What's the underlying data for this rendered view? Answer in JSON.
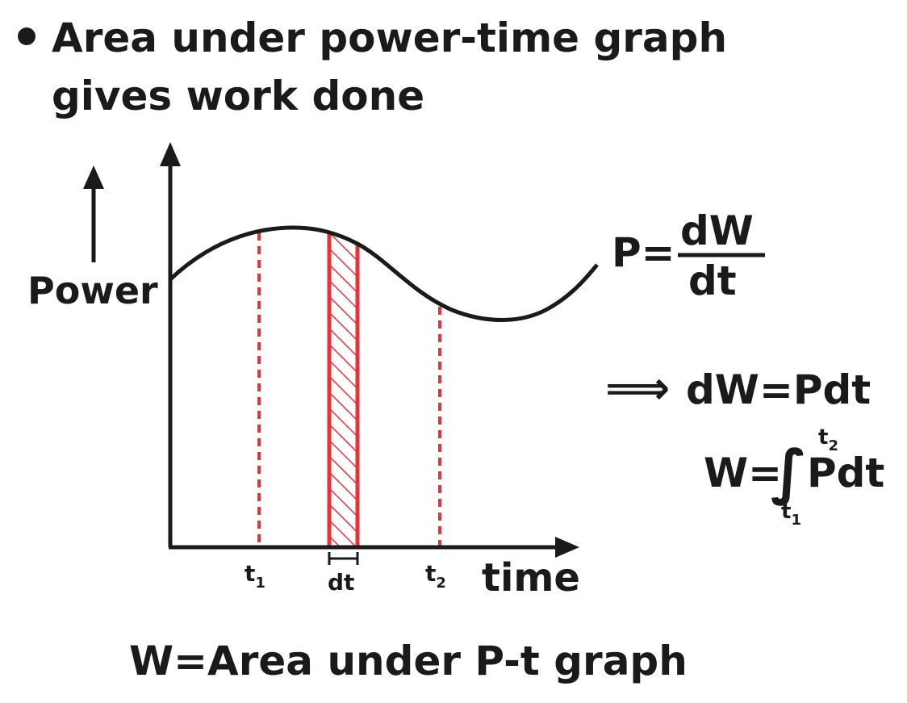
{
  "heading": {
    "line1": "Area under power-time graph",
    "line2": "gives work done"
  },
  "graph": {
    "y_label": "Power",
    "x_label": "time",
    "tick_t1_base": "t",
    "tick_t1_sub": "1",
    "tick_dt": "dt",
    "tick_t2_base": "t",
    "tick_t2_sub": "2"
  },
  "equations": {
    "p_lhs": "P=",
    "p_num": "dW",
    "p_den": "dt",
    "implies": "⟹",
    "dw_eq": "dW=Pdt",
    "w_lhs": "W=",
    "integral": "∫",
    "integrand": "Pdt",
    "upper_base": "t",
    "upper_sub": "2",
    "lower_base": "t",
    "lower_sub": "1"
  },
  "conclusion": "W=Area under P-t graph",
  "colors": {
    "ink": "#1a1a1a",
    "accent": "#e8323a"
  }
}
